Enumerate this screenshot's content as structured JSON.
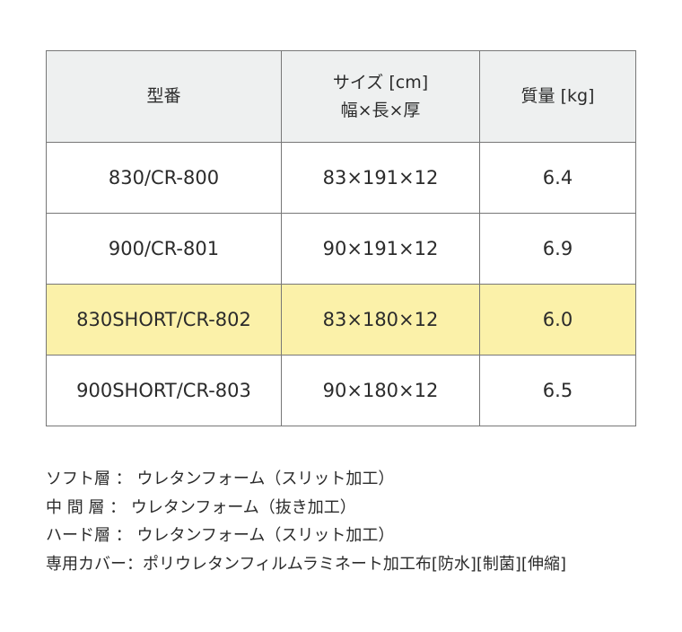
{
  "table": {
    "headers": [
      {
        "line1": "型番",
        "line2": ""
      },
      {
        "line1": "サイズ [cm]",
        "line2": "幅×長×厚"
      },
      {
        "line1": "質量 [kg]",
        "line2": ""
      }
    ],
    "rows": [
      {
        "model": "830/CR-800",
        "size": "83×191×12",
        "weight": "6.4",
        "highlighted": false
      },
      {
        "model": "900/CR-801",
        "size": "90×191×12",
        "weight": "6.9",
        "highlighted": false
      },
      {
        "model": "830SHORT/CR-802",
        "size": "83×180×12",
        "weight": "6.0",
        "highlighted": true
      },
      {
        "model": "900SHORT/CR-803",
        "size": "90×180×12",
        "weight": "6.5",
        "highlighted": false
      }
    ],
    "header_bg": "#eef0f0",
    "highlight_bg": "#fbf1a9"
  },
  "notes": [
    "ソフト層 ： ウレタンフォーム（スリット加工）",
    "中 間 層 ： ウレタンフォーム（抜き加工）",
    "ハード層 ： ウレタンフォーム（スリット加工）",
    "専用カバー：ポリウレタンフィルムラミネート加工布[防水][制菌][伸縮]"
  ]
}
